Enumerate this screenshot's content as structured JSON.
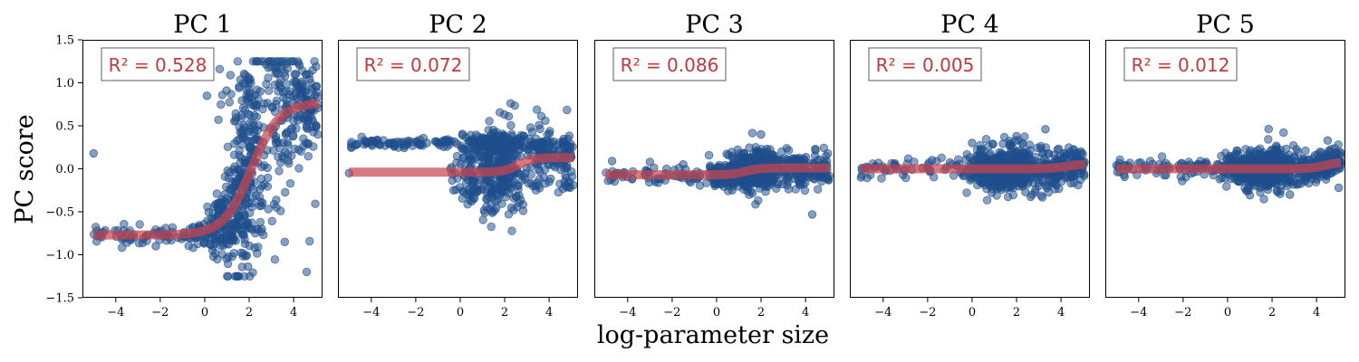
{
  "chart_data": {
    "type": "scatter",
    "ylabel": "PC score",
    "xlabel": "log-parameter size",
    "xlim": [
      -5.5,
      5.3
    ],
    "ylim": [
      -1.5,
      1.5
    ],
    "xticks": [
      -4,
      -2,
      0,
      2,
      4
    ],
    "xtick_labels": [
      "−4",
      "−2",
      "0",
      "2",
      "4"
    ],
    "yticks": [
      -1.5,
      -1.0,
      -0.5,
      0.0,
      0.5,
      1.0,
      1.5
    ],
    "ytick_labels": [
      "−1.5",
      "−1.0",
      "−0.5",
      "0.0",
      "0.5",
      "1.0",
      "1.5"
    ],
    "colors": {
      "points": "#1f4e8c",
      "fit": "#c9444d",
      "r2": "#c0393e"
    },
    "panels": [
      {
        "title": "PC 1",
        "r2_label": "R² = 0.528",
        "fit": {
          "low": -0.77,
          "high": 0.77,
          "center": 2.1,
          "slope": 1.6
        },
        "points_sample": [
          {
            "x": -5.0,
            "y": 0.18
          },
          {
            "x": -3.5,
            "y": -0.86
          },
          {
            "x": -2.2,
            "y": -0.9
          },
          {
            "x": -1.2,
            "y": -0.8
          },
          {
            "x": 0.1,
            "y": 0.85
          },
          {
            "x": 0.9,
            "y": -0.3
          },
          {
            "x": 1.9,
            "y": -0.1
          },
          {
            "x": 2.5,
            "y": 0.9
          },
          {
            "x": 2.9,
            "y": 1.25
          },
          {
            "x": 3.2,
            "y": 0.3
          },
          {
            "x": 3.6,
            "y": -0.85
          },
          {
            "x": 4.1,
            "y": 1.1
          },
          {
            "x": 4.6,
            "y": 0.8
          }
        ]
      },
      {
        "title": "PC 2",
        "r2_label": "R² = 0.072",
        "fit": {
          "low": -0.04,
          "high": 0.13,
          "center": 2.6,
          "slope": 3.0
        },
        "points_sample": [
          {
            "x": -5.0,
            "y": -0.05
          },
          {
            "x": -4.3,
            "y": 0.33
          },
          {
            "x": -3.0,
            "y": 0.3
          },
          {
            "x": -1.5,
            "y": 0.3
          },
          {
            "x": -0.3,
            "y": -0.25
          },
          {
            "x": 0.5,
            "y": 0.1
          },
          {
            "x": 1.8,
            "y": -0.1
          },
          {
            "x": 2.3,
            "y": -0.45
          },
          {
            "x": 3.1,
            "y": 0.35
          },
          {
            "x": 4.0,
            "y": -0.15
          },
          {
            "x": 4.7,
            "y": 0.25
          }
        ]
      },
      {
        "title": "PC 3",
        "r2_label": "R² = 0.086",
        "fit": {
          "low": -0.07,
          "high": 0.01,
          "center": 1.3,
          "slope": 3.0
        },
        "points_sample": [
          {
            "x": -4.7,
            "y": 0.09
          },
          {
            "x": -3.0,
            "y": 0.08
          },
          {
            "x": -1.5,
            "y": 0.05
          },
          {
            "x": -0.3,
            "y": -0.1
          },
          {
            "x": 0.7,
            "y": -0.25
          },
          {
            "x": 1.8,
            "y": 0.1
          },
          {
            "x": 2.0,
            "y": 0.4
          },
          {
            "x": 3.1,
            "y": 0.0
          },
          {
            "x": 4.3,
            "y": -0.53
          },
          {
            "x": 4.8,
            "y": 0.02
          }
        ]
      },
      {
        "title": "PC 4",
        "r2_label": "R² = 0.005",
        "fit": {
          "low": 0.0,
          "high": 0.06,
          "center": 4.3,
          "slope": 2.5
        },
        "points_sample": [
          {
            "x": -5.0,
            "y": -0.1
          },
          {
            "x": -3.5,
            "y": 0.05
          },
          {
            "x": -1.8,
            "y": 0.1
          },
          {
            "x": 0.0,
            "y": 0.3
          },
          {
            "x": 0.8,
            "y": -0.2
          },
          {
            "x": 2.0,
            "y": 0.38
          },
          {
            "x": 2.4,
            "y": -0.27
          },
          {
            "x": 3.3,
            "y": 0.46
          },
          {
            "x": 4.3,
            "y": -0.1
          },
          {
            "x": 4.9,
            "y": 0.2
          }
        ]
      },
      {
        "title": "PC 5",
        "r2_label": "R² = 0.012",
        "fit": {
          "low": 0.0,
          "high": 0.08,
          "center": 4.4,
          "slope": 3.0
        },
        "points_sample": [
          {
            "x": -5.0,
            "y": 0.04
          },
          {
            "x": -3.2,
            "y": -0.05
          },
          {
            "x": -1.5,
            "y": 0.0
          },
          {
            "x": 0.1,
            "y": 0.15
          },
          {
            "x": 0.9,
            "y": -0.15
          },
          {
            "x": 2.2,
            "y": 0.25
          },
          {
            "x": 2.8,
            "y": -0.3
          },
          {
            "x": 4.0,
            "y": -0.12
          },
          {
            "x": 4.5,
            "y": 0.33
          },
          {
            "x": 5.0,
            "y": -0.22
          }
        ]
      }
    ]
  }
}
